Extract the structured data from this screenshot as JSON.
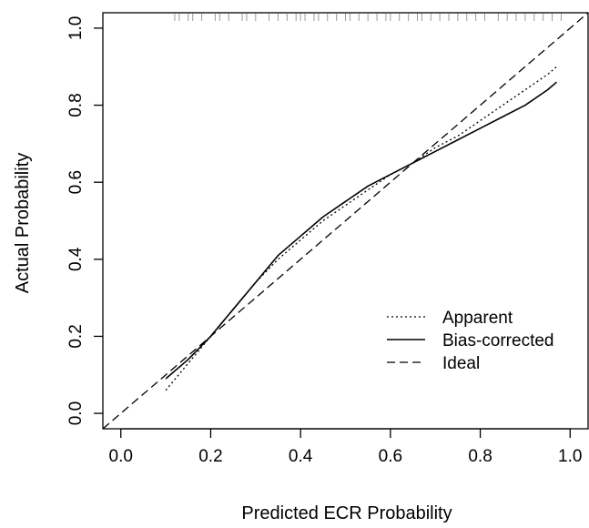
{
  "chart_data": {
    "type": "line",
    "title": "",
    "xlabel": "Predicted ECR Probability",
    "ylabel": "Actual Probability",
    "xlim": [
      -0.04,
      1.04
    ],
    "ylim": [
      -0.04,
      1.04
    ],
    "xticks": [
      {
        "value": 0.0,
        "label": "0.0"
      },
      {
        "value": 0.2,
        "label": "0.2"
      },
      {
        "value": 0.4,
        "label": "0.4"
      },
      {
        "value": 0.6,
        "label": "0.6"
      },
      {
        "value": 0.8,
        "label": "0.8"
      },
      {
        "value": 1.0,
        "label": "1.0"
      }
    ],
    "yticks": [
      {
        "value": 0.0,
        "label": "0.0"
      },
      {
        "value": 0.2,
        "label": "0.2"
      },
      {
        "value": 0.4,
        "label": "0.4"
      },
      {
        "value": 0.6,
        "label": "0.6"
      },
      {
        "value": 0.8,
        "label": "0.8"
      },
      {
        "value": 1.0,
        "label": "1.0"
      }
    ],
    "grid": false,
    "legend_position": "bottom-right",
    "series": [
      {
        "name": "Apparent",
        "style": "dotted",
        "color": "#000000",
        "x": [
          0.1,
          0.15,
          0.2,
          0.25,
          0.3,
          0.35,
          0.4,
          0.45,
          0.5,
          0.55,
          0.6,
          0.65,
          0.7,
          0.75,
          0.8,
          0.85,
          0.9,
          0.95,
          0.97
        ],
        "y": [
          0.06,
          0.13,
          0.2,
          0.27,
          0.34,
          0.4,
          0.45,
          0.5,
          0.54,
          0.58,
          0.62,
          0.65,
          0.69,
          0.72,
          0.76,
          0.8,
          0.84,
          0.88,
          0.9
        ]
      },
      {
        "name": "Bias-corrected",
        "style": "solid",
        "color": "#000000",
        "x": [
          0.1,
          0.15,
          0.2,
          0.25,
          0.3,
          0.35,
          0.4,
          0.45,
          0.5,
          0.55,
          0.6,
          0.65,
          0.7,
          0.75,
          0.8,
          0.85,
          0.9,
          0.95,
          0.97
        ],
        "y": [
          0.09,
          0.14,
          0.2,
          0.27,
          0.34,
          0.41,
          0.46,
          0.51,
          0.55,
          0.59,
          0.62,
          0.65,
          0.68,
          0.71,
          0.74,
          0.77,
          0.8,
          0.84,
          0.86
        ]
      },
      {
        "name": "Ideal",
        "style": "dashed",
        "color": "#000000",
        "x": [
          -0.04,
          1.04
        ],
        "y": [
          -0.04,
          1.04
        ]
      }
    ],
    "rug": [
      0.12,
      0.13,
      0.15,
      0.16,
      0.18,
      0.21,
      0.22,
      0.24,
      0.27,
      0.28,
      0.3,
      0.33,
      0.35,
      0.37,
      0.39,
      0.4,
      0.41,
      0.43,
      0.44,
      0.46,
      0.48,
      0.5,
      0.51,
      0.53,
      0.55,
      0.57,
      0.59,
      0.6,
      0.62,
      0.64,
      0.66,
      0.67,
      0.69,
      0.71,
      0.73,
      0.75,
      0.77,
      0.79,
      0.81,
      0.84,
      0.86,
      0.88,
      0.9,
      0.92,
      0.94,
      0.96,
      0.98
    ]
  }
}
